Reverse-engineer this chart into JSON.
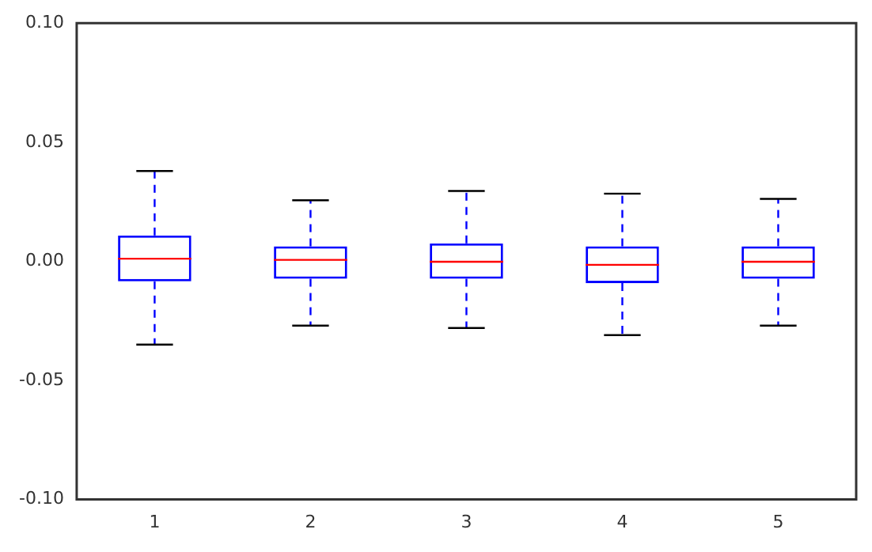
{
  "chart_data": {
    "type": "box",
    "categories": [
      "1",
      "2",
      "3",
      "4",
      "5"
    ],
    "boxes": [
      {
        "low": -0.035,
        "q1": -0.0084,
        "median": 0.0011,
        "q3": 0.0108,
        "high": 0.0379
      },
      {
        "low": -0.027,
        "q1": -0.0073,
        "median": 0.0006,
        "q3": 0.0063,
        "high": 0.0256
      },
      {
        "low": -0.028,
        "q1": -0.0073,
        "median": -0.0002,
        "q3": 0.0075,
        "high": 0.0295
      },
      {
        "low": -0.031,
        "q1": -0.0092,
        "median": -0.0015,
        "q3": 0.0063,
        "high": 0.0284
      },
      {
        "low": -0.027,
        "q1": -0.0073,
        "median": -0.0002,
        "q3": 0.0063,
        "high": 0.0262
      }
    ],
    "color": "#0000ff",
    "ylim": [
      -0.1,
      0.1
    ],
    "yticks": [
      {
        "value": -0.1,
        "label": "-0.10"
      },
      {
        "value": -0.05,
        "label": "-0.05"
      },
      {
        "value": 0,
        "label": "0.00"
      },
      {
        "value": 0.05,
        "label": "0.05"
      },
      {
        "value": 0.1,
        "label": "0.10"
      }
    ],
    "grid": false,
    "legend": false
  }
}
